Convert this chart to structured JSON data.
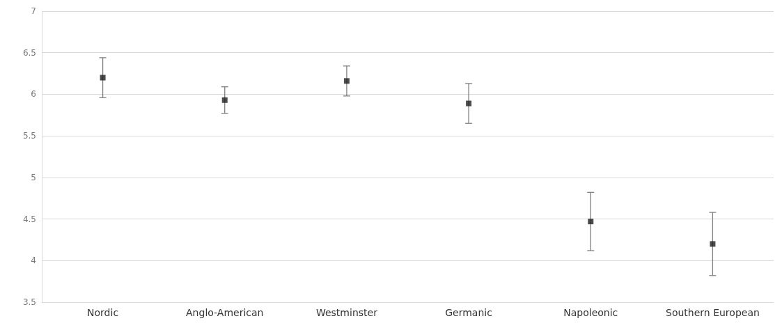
{
  "chart_data": {
    "type": "scatter",
    "categories": [
      "Nordic",
      "Anglo-American",
      "Westminster",
      "Germanic",
      "Napoleonic",
      "Southern European"
    ],
    "series": [
      {
        "color": "#1f1f1f",
        "values": [
          6.2,
          5.93,
          6.16,
          5.89,
          4.47,
          4.2
        ],
        "errors": [
          [
            5.96,
            6.44
          ],
          [
            5.77,
            6.09
          ],
          [
            5.98,
            6.34
          ],
          [
            5.65,
            6.13
          ],
          [
            4.12,
            4.82
          ],
          [
            3.82,
            4.58
          ]
        ]
      }
    ],
    "ylim": [
      3.5,
      7
    ],
    "yticks": [
      3.5,
      4,
      4.5,
      5,
      5.5,
      6,
      6.5,
      7
    ],
    "grid": "y",
    "marker": "square"
  }
}
